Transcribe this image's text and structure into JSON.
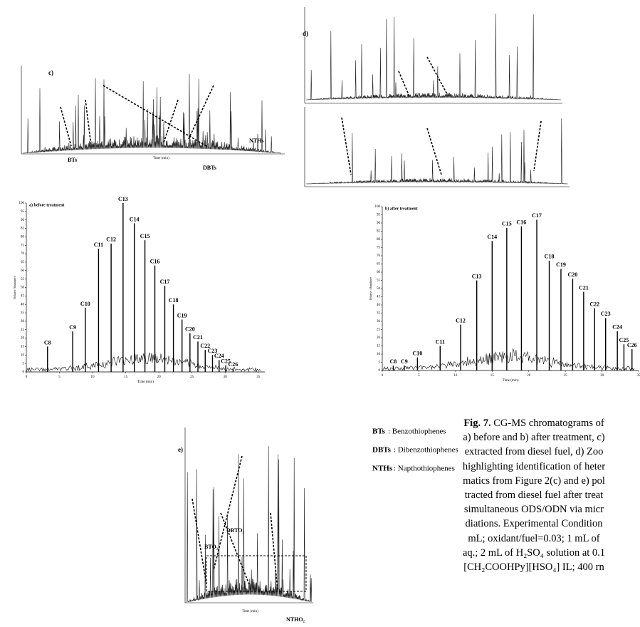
{
  "chart_data": [
    {
      "type": "bar",
      "title": "a) before treatment",
      "xlabel": "Time (min)",
      "ylabel": "Relative Abundance",
      "color": "#000000",
      "x": [
        3.2,
        7,
        8.9,
        10.9,
        12.8,
        14.6,
        16.3,
        17.9,
        19.4,
        20.9,
        22.2,
        23.5,
        24.7,
        25.9,
        27,
        28.1,
        29.1,
        30.1,
        31.2
      ],
      "values": [
        15,
        24,
        38,
        73,
        76,
        100,
        88,
        78,
        63,
        51,
        40,
        31,
        23,
        18,
        13,
        10,
        7,
        4,
        2
      ],
      "peak_labels": [
        "C8",
        "C9",
        "C10",
        "C11",
        "C12",
        "C13",
        "C14",
        "C15",
        "C16",
        "C17",
        "C18",
        "C19",
        "C20",
        "C21",
        "C22",
        "C23",
        "C24",
        "C25",
        "C26"
      ],
      "xlim": [
        0,
        36
      ],
      "ylim": [
        0,
        100
      ],
      "xticks": [
        0,
        5,
        10,
        15,
        20,
        25,
        30,
        35
      ],
      "yticks": [
        0,
        5,
        10,
        15,
        20,
        25,
        30,
        35,
        40,
        45,
        50,
        55,
        60,
        65,
        70,
        75,
        80,
        85,
        90,
        95,
        100
      ]
    },
    {
      "type": "bar",
      "title": "b) after treatment",
      "xlabel": "Time (min)",
      "ylabel": "Relative Abundance",
      "color": "#000000",
      "x": [
        1.5,
        3,
        4.8,
        7.9,
        10.7,
        12.9,
        15,
        17,
        19,
        21.1,
        22.8,
        24.4,
        26,
        27.5,
        29,
        30.5,
        32.1,
        33,
        34.1
      ],
      "values": [
        3,
        3,
        8,
        15,
        28,
        55,
        79,
        87,
        88,
        92,
        67,
        62,
        56,
        48,
        38,
        32,
        24,
        16,
        13
      ],
      "peak_labels": [
        "C8",
        "C9",
        "C10",
        "C11",
        "C12",
        "C13",
        "C14",
        "C15",
        "C16",
        "C17",
        "C18",
        "C19",
        "C20",
        "C21",
        "C22",
        "C23",
        "C24",
        "C25",
        "C26"
      ],
      "xlim": [
        0,
        35
      ],
      "ylim": [
        0,
        100
      ],
      "xticks": [
        0,
        5,
        10,
        15,
        20,
        25,
        30,
        35
      ],
      "yticks": [
        0,
        5,
        10,
        15,
        20,
        25,
        30,
        35,
        40,
        45,
        50,
        55,
        60,
        65,
        70,
        75,
        80,
        85,
        90,
        95,
        100
      ]
    }
  ],
  "panels": {
    "c": {
      "label": "c)",
      "xlabel": "Time (min)",
      "groups": [
        "BTs",
        "DBTs",
        "NTHs"
      ]
    },
    "d": {
      "label": "d)"
    },
    "e": {
      "label": "e)",
      "xlabel": "Time (min)",
      "groups": [
        "BTO₂",
        "DBTO₂",
        "NTHO₂"
      ]
    }
  },
  "legend": [
    {
      "abbr": "BTs",
      "text": ": Benzothiophenes"
    },
    {
      "abbr": "DBTs",
      "text": ": Dibenzothiophenes"
    },
    {
      "abbr": "NTHs",
      "text": ": Napthothiophenes"
    }
  ],
  "caption": {
    "lead": "Fig. 7.",
    "lines": [
      " CG-MS chromatograms of",
      "a) before and b) after treatment, c)",
      "extracted from diesel fuel, d) Zoo",
      "highlighting identification of heter",
      "matics from Figure 2(c) and e) pol",
      "tracted from diesel fuel after treat",
      "simultaneous ODS/ODN via micr",
      "diations. Experimental Condition",
      "mL; oxidant/fuel=0.03; 1 mL of",
      "aq.; 2 mL of H₂SO₄ solution at 0.1",
      "[CH₂COOHPy][HSO₄] IL; 400 rn"
    ]
  }
}
